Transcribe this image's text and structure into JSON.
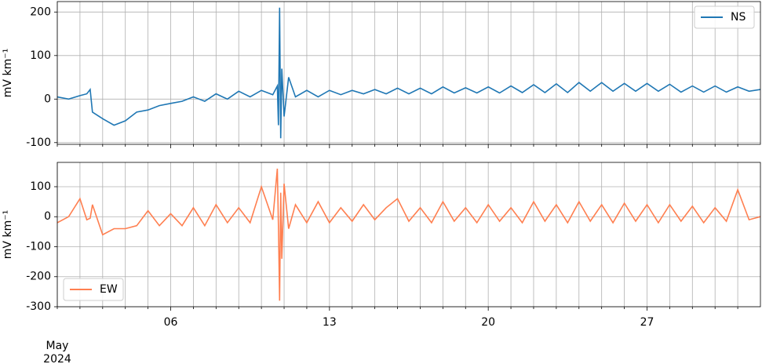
{
  "chart_data": [
    {
      "type": "line",
      "sharex": true,
      "y_label": "mV km⁻¹",
      "x": [
        1,
        1.5,
        2,
        2.3,
        2.45,
        2.55,
        3,
        3.5,
        4,
        4.5,
        5,
        5.5,
        6,
        6.5,
        7,
        7.5,
        8,
        8.5,
        9,
        9.5,
        10,
        10.5,
        10.7,
        10.75,
        10.8,
        10.85,
        10.9,
        11,
        11.2,
        11.5,
        12,
        12.5,
        13,
        13.5,
        14,
        14.5,
        15,
        15.5,
        16,
        16.5,
        17,
        17.5,
        18,
        18.5,
        19,
        19.5,
        20,
        20.5,
        21,
        21.5,
        22,
        22.5,
        23,
        23.5,
        24,
        24.5,
        25,
        25.5,
        26,
        26.5,
        27,
        27.5,
        28,
        28.5,
        29,
        29.5,
        30,
        30.5,
        31,
        31.5,
        32
      ],
      "series": [
        {
          "name": "NS",
          "color": "#1f77b4",
          "values": [
            5,
            0,
            8,
            12,
            22,
            -30,
            -45,
            -60,
            -50,
            -30,
            -25,
            -15,
            -10,
            -5,
            5,
            -5,
            12,
            0,
            18,
            5,
            20,
            10,
            30,
            -60,
            210,
            -90,
            70,
            -40,
            50,
            5,
            20,
            5,
            20,
            10,
            20,
            12,
            22,
            12,
            25,
            12,
            25,
            12,
            28,
            14,
            26,
            14,
            28,
            14,
            30,
            15,
            33,
            15,
            35,
            15,
            38,
            18,
            38,
            18,
            36,
            18,
            36,
            18,
            34,
            16,
            30,
            16,
            30,
            16,
            28,
            18,
            22
          ]
        }
      ],
      "xlim": [
        1,
        32
      ],
      "ylim": [
        -104,
        224
      ],
      "yticks": [
        -100,
        0,
        100,
        200
      ],
      "grid": true,
      "legend": "upper right"
    },
    {
      "type": "line",
      "y_label": "mV km⁻¹",
      "x": [
        1,
        1.5,
        2,
        2.3,
        2.45,
        2.55,
        3,
        3.5,
        4,
        4.5,
        5,
        5.5,
        6,
        6.5,
        7,
        7.5,
        8,
        8.5,
        9,
        9.5,
        10,
        10.5,
        10.7,
        10.75,
        10.8,
        10.85,
        10.9,
        11,
        11.2,
        11.5,
        12,
        12.5,
        13,
        13.5,
        14,
        14.5,
        15,
        15.5,
        16,
        16.5,
        17,
        17.5,
        18,
        18.5,
        19,
        19.5,
        20,
        20.5,
        21,
        21.5,
        22,
        22.5,
        23,
        23.5,
        24,
        24.5,
        25,
        25.5,
        26,
        26.5,
        27,
        27.5,
        28,
        28.5,
        29,
        29.5,
        30,
        30.5,
        31,
        31.5,
        32
      ],
      "series": [
        {
          "name": "EW",
          "color": "#ff7f50",
          "values": [
            -20,
            0,
            60,
            -10,
            -5,
            40,
            -60,
            -40,
            -40,
            -30,
            20,
            -30,
            10,
            -30,
            30,
            -30,
            40,
            -20,
            30,
            -20,
            100,
            -10,
            160,
            -30,
            -280,
            80,
            -140,
            110,
            -40,
            40,
            -20,
            50,
            -20,
            30,
            -15,
            40,
            -10,
            30,
            60,
            -15,
            30,
            -20,
            50,
            -15,
            30,
            -20,
            40,
            -15,
            30,
            -20,
            50,
            -15,
            40,
            -20,
            50,
            -15,
            40,
            -20,
            45,
            -15,
            40,
            -20,
            40,
            -15,
            35,
            -20,
            30,
            -15,
            90,
            -10,
            0
          ]
        }
      ],
      "xlim": [
        1,
        32
      ],
      "ylim": [
        -300,
        181
      ],
      "yticks": [
        -300,
        -200,
        -100,
        0,
        100
      ],
      "grid": true,
      "legend": "lower left",
      "xticks": [
        {
          "value": 6,
          "label": "06"
        },
        {
          "value": 13,
          "label": "13"
        },
        {
          "value": 20,
          "label": "20"
        },
        {
          "value": 27,
          "label": "27"
        }
      ],
      "xminorticks": [
        1,
        2,
        3,
        4,
        5,
        7,
        8,
        9,
        10,
        11,
        12,
        14,
        15,
        16,
        17,
        18,
        19,
        21,
        22,
        23,
        24,
        25,
        26,
        28,
        29,
        30,
        31
      ],
      "x_offset_label": {
        "value": 1,
        "lines": [
          "May",
          "2024"
        ]
      }
    }
  ]
}
